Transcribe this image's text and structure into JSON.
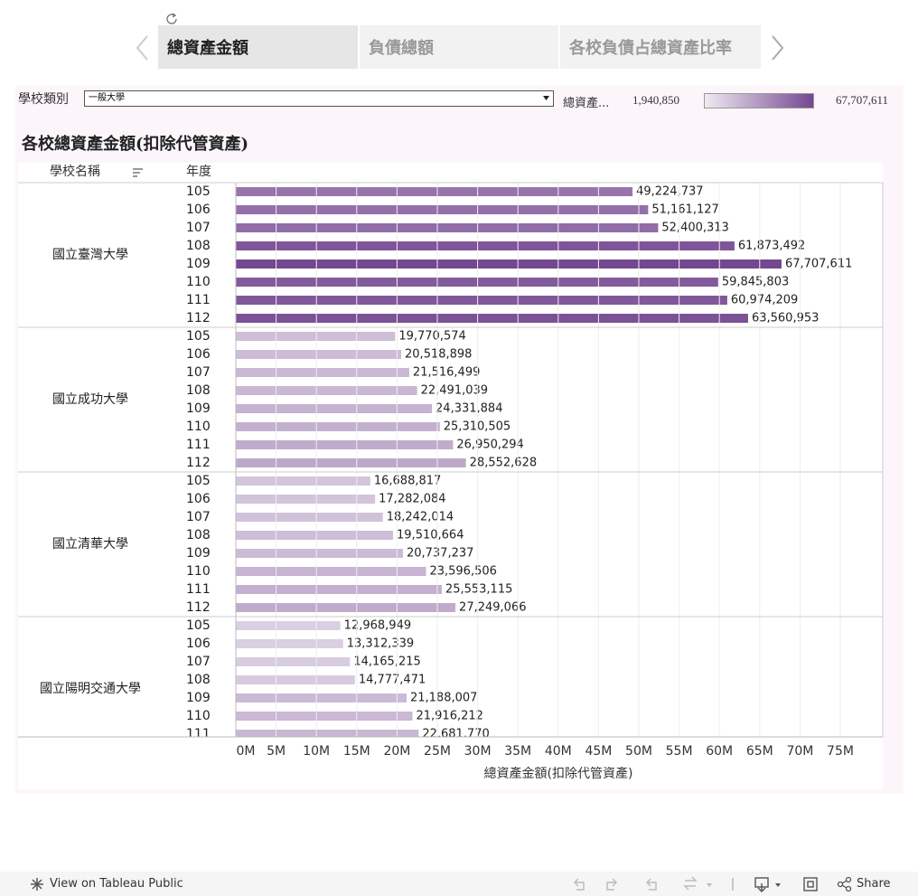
{
  "tabs": [
    "總資產金額",
    "負債總額",
    "各校負債占總資產比率"
  ],
  "filter": {
    "label": "學校類別",
    "value": "一般大學"
  },
  "color_legend": {
    "title": "總資產...",
    "min": {
      "value": 1940850,
      "label": "1,940,850"
    },
    "max": {
      "value": 67707611,
      "label": "67,707,611"
    },
    "colors": [
      "#efeaf2",
      "#744790"
    ]
  },
  "footer": {
    "link": "View on Tableau Public",
    "share": "Share"
  },
  "chart_data": {
    "type": "bar",
    "orientation": "horizontal",
    "title": "各校總資產金額(扣除代管資產)",
    "xlabel": "總資產金額(扣除代管資產)",
    "row_headers": [
      "學校名稱",
      "年度"
    ],
    "groups": [
      {
        "name": "國立臺灣大學",
        "categories": [
          "105",
          "106",
          "107",
          "108",
          "109",
          "110",
          "111",
          "112"
        ],
        "values": [
          49224737,
          51161127,
          52400313,
          61873492,
          67707611,
          59845803,
          60974209,
          63560953
        ],
        "value_labels": [
          "49,224,737",
          "51,161,127",
          "52,400,313",
          "61,873,492",
          "67,707,611",
          "59,845,803",
          "60,974,209",
          "63,560,953"
        ]
      },
      {
        "name": "國立成功大學",
        "categories": [
          "105",
          "106",
          "107",
          "108",
          "109",
          "110",
          "111",
          "112"
        ],
        "values": [
          19770574,
          20518898,
          21516499,
          22491039,
          24331884,
          25310505,
          26950294,
          28552628
        ],
        "value_labels": [
          "19,770,574",
          "20,518,898",
          "21,516,499",
          "22,491,039",
          "24,331,884",
          "25,310,505",
          "26,950,294",
          "28,552,628"
        ]
      },
      {
        "name": "國立清華大學",
        "categories": [
          "105",
          "106",
          "107",
          "108",
          "109",
          "110",
          "111",
          "112"
        ],
        "values": [
          16688817,
          17282084,
          18242014,
          19510664,
          20737237,
          23596506,
          25553115,
          27249066
        ],
        "value_labels": [
          "16,688,817",
          "17,282,084",
          "18,242,014",
          "19,510,664",
          "20,737,237",
          "23,596,506",
          "25,553,115",
          "27,249,066"
        ]
      },
      {
        "name": "國立陽明交通大學",
        "categories": [
          "105",
          "106",
          "107",
          "108",
          "109",
          "110",
          "111"
        ],
        "values": [
          12968949,
          13312339,
          14165215,
          14777471,
          21188007,
          21916212,
          22681770
        ],
        "value_labels": [
          "12,968,949",
          "13,312,339",
          "14,165,215",
          "14,777,471",
          "21,188,007",
          "21,916,212",
          "22,681,770"
        ]
      }
    ],
    "xlim": [
      0,
      80270000
    ],
    "xticks": [
      {
        "value": 0,
        "label": "0M"
      },
      {
        "value": 5000000,
        "label": "5M"
      },
      {
        "value": 10000000,
        "label": "10M"
      },
      {
        "value": 15000000,
        "label": "15M"
      },
      {
        "value": 20000000,
        "label": "20M"
      },
      {
        "value": 25000000,
        "label": "25M"
      },
      {
        "value": 30000000,
        "label": "30M"
      },
      {
        "value": 35000000,
        "label": "35M"
      },
      {
        "value": 40000000,
        "label": "40M"
      },
      {
        "value": 45000000,
        "label": "45M"
      },
      {
        "value": 50000000,
        "label": "50M"
      },
      {
        "value": 55000000,
        "label": "55M"
      },
      {
        "value": 60000000,
        "label": "60M"
      },
      {
        "value": 65000000,
        "label": "65M"
      },
      {
        "value": 70000000,
        "label": "70M"
      },
      {
        "value": 75000000,
        "label": "75M"
      }
    ],
    "grid": true
  }
}
